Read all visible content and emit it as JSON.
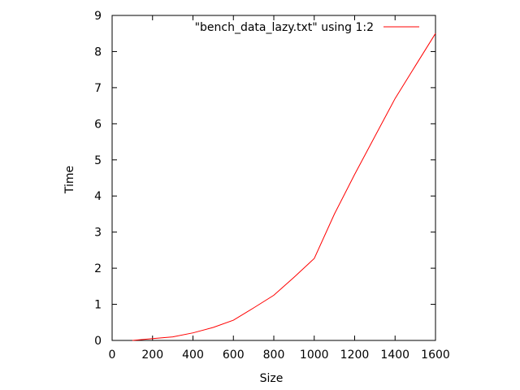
{
  "chart_data": {
    "type": "line",
    "title": "",
    "xlabel": "Size",
    "ylabel": "Time",
    "xlim": [
      0,
      1600
    ],
    "ylim": [
      0,
      9
    ],
    "x_ticks": [
      0,
      200,
      400,
      600,
      800,
      1000,
      1200,
      1400,
      1600
    ],
    "y_ticks": [
      0,
      1,
      2,
      3,
      4,
      5,
      6,
      7,
      8,
      9
    ],
    "grid": false,
    "legend_position": "top-right",
    "series": [
      {
        "name": "\"bench_data_lazy.txt\" using 1:2",
        "color": "#ff0000",
        "x": [
          100,
          200,
          300,
          400,
          500,
          600,
          700,
          800,
          900,
          1000,
          1100,
          1200,
          1300,
          1400,
          1500,
          1600
        ],
        "y": [
          0.0,
          0.05,
          0.1,
          0.21,
          0.36,
          0.56,
          0.9,
          1.25,
          1.75,
          2.27,
          3.5,
          4.6,
          5.65,
          6.7,
          7.6,
          8.5
        ]
      }
    ]
  }
}
